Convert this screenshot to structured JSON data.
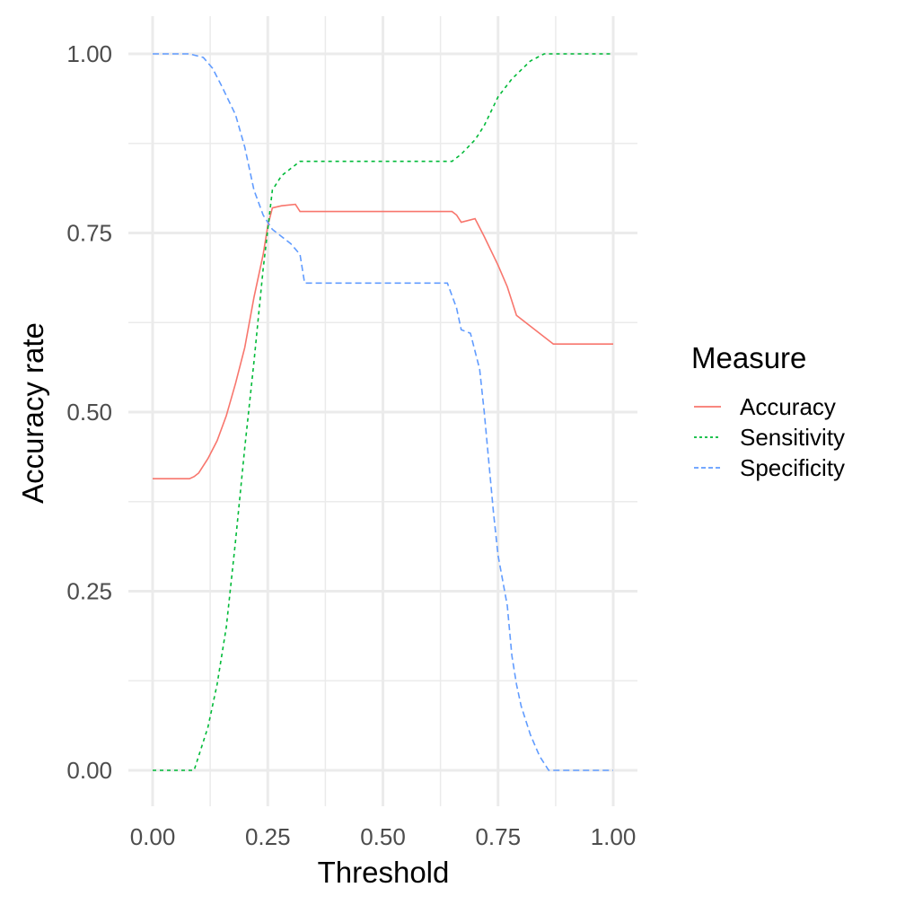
{
  "chart_data": {
    "type": "line",
    "xlabel": "Threshold",
    "ylabel": "Accuracy rate",
    "xlim": [
      0,
      1
    ],
    "ylim": [
      0,
      1
    ],
    "x_ticks": [
      0,
      0.25,
      0.5,
      0.75,
      1
    ],
    "x_tick_labels": [
      "0.00",
      "0.25",
      "0.50",
      "0.75",
      "1.00"
    ],
    "y_ticks": [
      0,
      0.25,
      0.5,
      0.75,
      1
    ],
    "y_tick_labels": [
      "0.00",
      "0.25",
      "0.50",
      "0.75",
      "1.00"
    ],
    "grid": true,
    "legend": {
      "title": "Measure",
      "position": "right",
      "entries": [
        "Accuracy",
        "Sensitivity",
        "Specificity"
      ]
    },
    "series": [
      {
        "name": "Accuracy",
        "color": "#F8766D",
        "dash": "solid",
        "x": [
          0.0,
          0.08,
          0.09,
          0.1,
          0.12,
          0.14,
          0.16,
          0.18,
          0.2,
          0.22,
          0.24,
          0.25,
          0.26,
          0.28,
          0.31,
          0.32,
          0.5,
          0.65,
          0.66,
          0.67,
          0.7,
          0.72,
          0.75,
          0.77,
          0.79,
          0.82,
          0.87,
          1.0
        ],
        "y": [
          0.407,
          0.407,
          0.41,
          0.415,
          0.435,
          0.46,
          0.495,
          0.54,
          0.59,
          0.66,
          0.72,
          0.76,
          0.785,
          0.788,
          0.79,
          0.78,
          0.78,
          0.78,
          0.775,
          0.765,
          0.77,
          0.745,
          0.705,
          0.675,
          0.635,
          0.62,
          0.595,
          0.595
        ]
      },
      {
        "name": "Sensitivity",
        "color": "#00BA38",
        "dash": "4 4",
        "x": [
          0.0,
          0.09,
          0.1,
          0.12,
          0.14,
          0.16,
          0.18,
          0.2,
          0.22,
          0.24,
          0.26,
          0.28,
          0.3,
          0.32,
          0.5,
          0.65,
          0.67,
          0.7,
          0.72,
          0.75,
          0.78,
          0.82,
          0.85,
          1.0
        ],
        "y": [
          0.0,
          0.0,
          0.02,
          0.06,
          0.12,
          0.2,
          0.32,
          0.45,
          0.57,
          0.7,
          0.81,
          0.83,
          0.84,
          0.85,
          0.85,
          0.85,
          0.86,
          0.88,
          0.9,
          0.94,
          0.965,
          0.99,
          1.0,
          1.0
        ]
      },
      {
        "name": "Specificity",
        "color": "#619CFF",
        "dash": "7 4",
        "x": [
          0.0,
          0.08,
          0.11,
          0.13,
          0.15,
          0.18,
          0.2,
          0.22,
          0.24,
          0.26,
          0.28,
          0.3,
          0.32,
          0.33,
          0.5,
          0.64,
          0.66,
          0.67,
          0.69,
          0.71,
          0.72,
          0.73,
          0.74,
          0.75,
          0.77,
          0.78,
          0.79,
          0.8,
          0.82,
          0.84,
          0.86,
          1.0
        ],
        "y": [
          1.0,
          1.0,
          0.995,
          0.98,
          0.955,
          0.915,
          0.87,
          0.81,
          0.775,
          0.755,
          0.745,
          0.735,
          0.72,
          0.68,
          0.68,
          0.68,
          0.645,
          0.615,
          0.61,
          0.56,
          0.5,
          0.43,
          0.36,
          0.3,
          0.23,
          0.16,
          0.12,
          0.09,
          0.05,
          0.02,
          0.0,
          0.0
        ]
      }
    ]
  }
}
